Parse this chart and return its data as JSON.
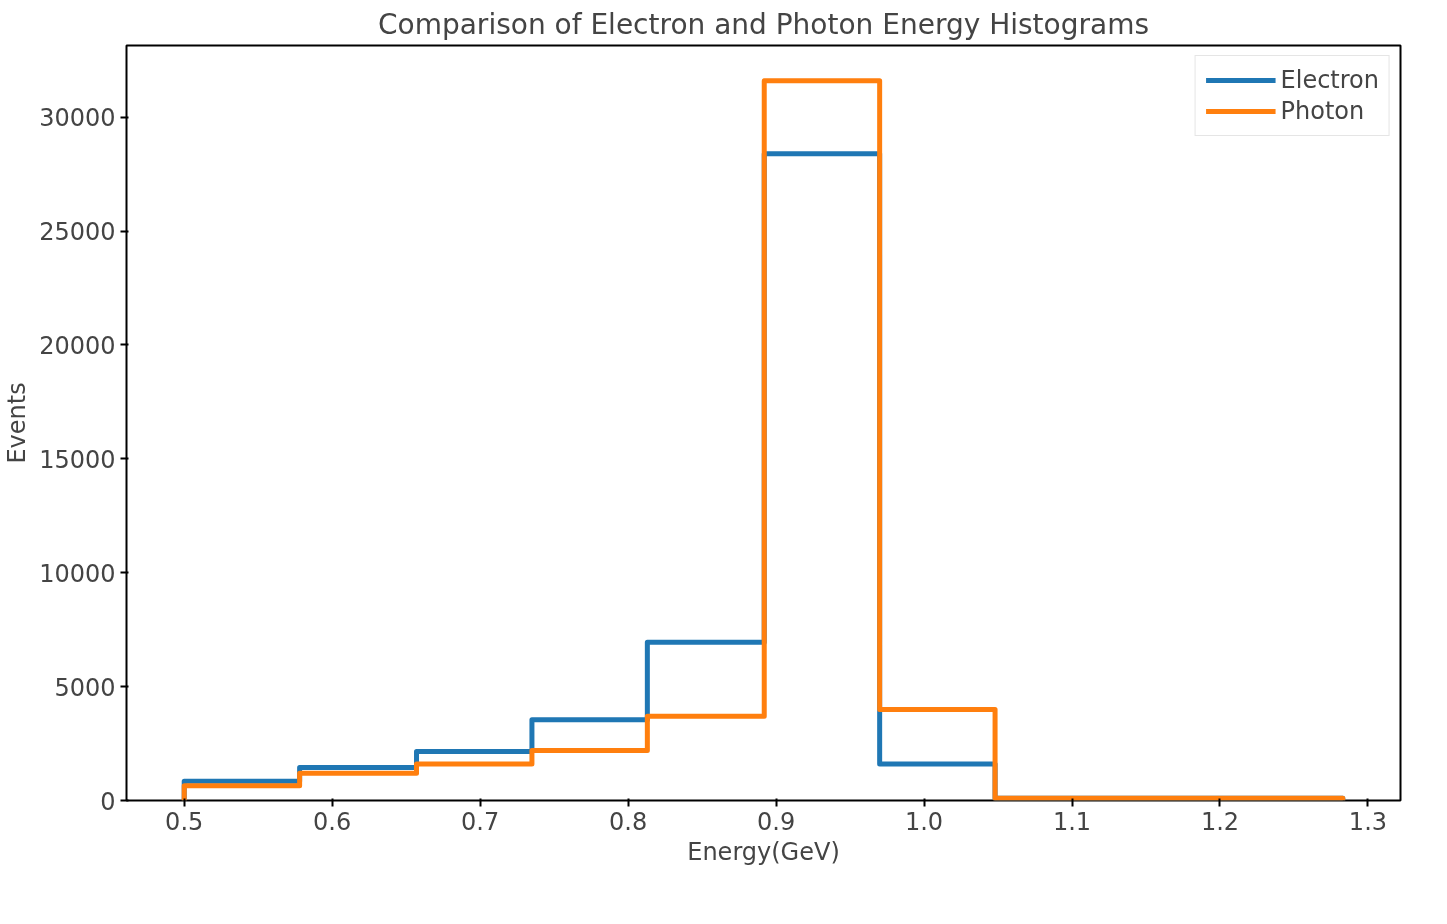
{
  "chart_data": {
    "type": "histogram",
    "title": "Comparison of Electron and Photon Energy Histograms",
    "xlabel": "Energy(GeV)",
    "ylabel": "Events",
    "bins": [
      0.5,
      0.578,
      0.657,
      0.735,
      0.813,
      0.892,
      0.97,
      1.048,
      1.127,
      1.205,
      1.283
    ],
    "series": [
      {
        "name": "Electron",
        "color": "#1f77b4",
        "values": [
          850,
          1450,
          2150,
          3550,
          6950,
          28400,
          1600,
          100,
          100,
          100
        ]
      },
      {
        "name": "Photon",
        "color": "#ff7f0e",
        "values": [
          650,
          1200,
          1600,
          2200,
          3700,
          31600,
          4000,
          100,
          100,
          100
        ]
      }
    ],
    "xlim": [
      0.461,
      1.322
    ],
    "ylim": [
      0,
      33150
    ],
    "xticks": [
      0.5,
      0.6,
      0.7,
      0.8,
      0.9,
      {
        "value": 1.0,
        "label": "1.0"
      },
      1.1,
      1.2,
      1.3
    ],
    "yticks": [
      0,
      5000,
      10000,
      15000,
      20000,
      25000,
      30000
    ],
    "grid": false,
    "legend": "top right"
  }
}
